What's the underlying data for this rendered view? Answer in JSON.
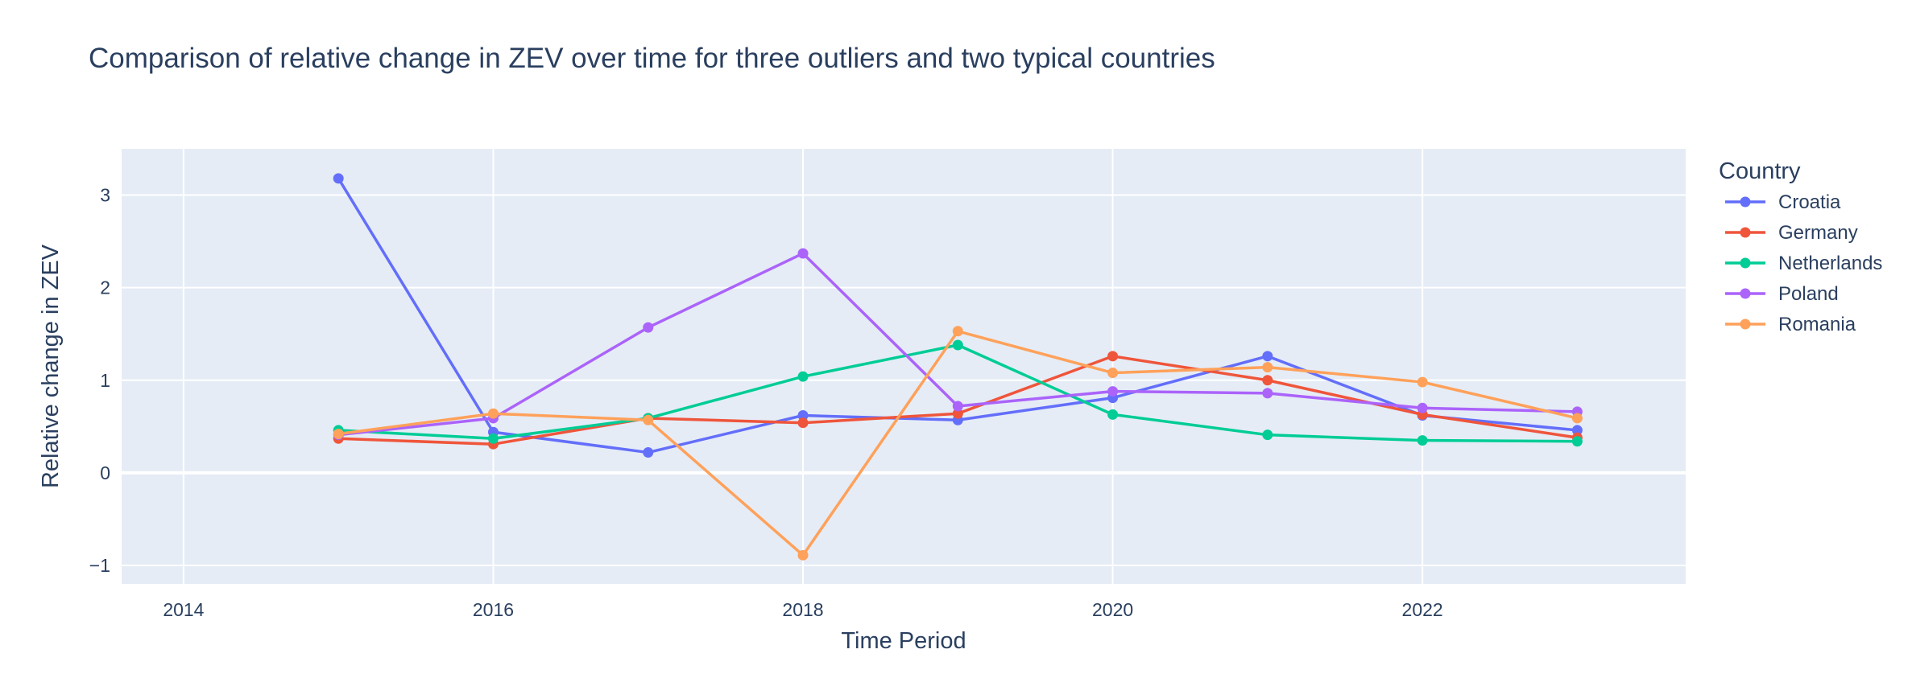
{
  "chart_data": {
    "type": "line",
    "title": "Comparison of relative change in ZEV over time for three outliers and two typical countries",
    "xlabel": "Time Period",
    "ylabel": "Relative change in ZEV",
    "xlim": [
      2013.6,
      2023.7
    ],
    "ylim": [
      -1.2,
      3.5
    ],
    "x_ticks": [
      2014,
      2016,
      2018,
      2020,
      2022
    ],
    "x_tick_labels": [
      "2014",
      "2016",
      "2018",
      "2020",
      "2022"
    ],
    "y_ticks": [
      -1,
      0,
      1,
      2,
      3
    ],
    "y_tick_labels": [
      "−1",
      "0",
      "1",
      "2",
      "3"
    ],
    "grid": true,
    "legend_title": "Country",
    "legend_position": "right",
    "x": [
      2015,
      2016,
      2017,
      2018,
      2019,
      2020,
      2021,
      2022,
      2023
    ],
    "series": [
      {
        "name": "Croatia",
        "color": "#636efa",
        "values": [
          3.18,
          0.44,
          0.22,
          0.62,
          0.57,
          0.81,
          1.26,
          0.62,
          0.46
        ]
      },
      {
        "name": "Germany",
        "color": "#ef553b",
        "values": [
          0.37,
          0.31,
          0.59,
          0.54,
          0.64,
          1.26,
          1.0,
          0.63,
          0.38
        ]
      },
      {
        "name": "Netherlands",
        "color": "#00cc96",
        "values": [
          0.46,
          0.37,
          0.59,
          1.04,
          1.38,
          0.63,
          0.41,
          0.35,
          0.34
        ]
      },
      {
        "name": "Poland",
        "color": "#ab63fa",
        "values": [
          0.41,
          0.59,
          1.57,
          2.37,
          0.72,
          0.88,
          0.86,
          0.7,
          0.66
        ]
      },
      {
        "name": "Romania",
        "color": "#ffa15a",
        "values": [
          0.42,
          0.64,
          0.57,
          -0.89,
          1.53,
          1.08,
          1.14,
          0.98,
          0.59
        ]
      }
    ]
  }
}
